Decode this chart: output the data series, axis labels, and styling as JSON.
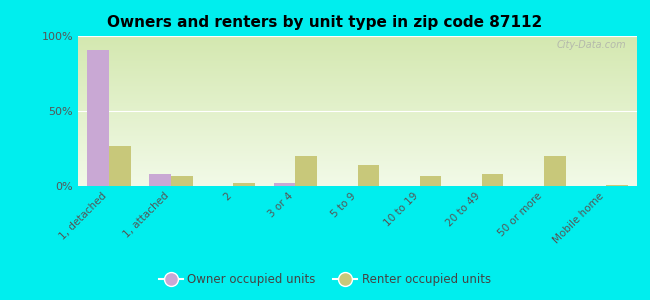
{
  "title": "Owners and renters by unit type in zip code 87112",
  "categories": [
    "1, detached",
    "1, attached",
    "2",
    "3 or 4",
    "5 to 9",
    "10 to 19",
    "20 to 49",
    "50 or more",
    "Mobile home"
  ],
  "owner_values": [
    91,
    8,
    0,
    2,
    0,
    0,
    0,
    0,
    0
  ],
  "renter_values": [
    27,
    7,
    2,
    20,
    14,
    7,
    8,
    20,
    1
  ],
  "owner_color": "#c9a8d4",
  "renter_color": "#c8c87a",
  "grad_top": "#d4e8b0",
  "grad_bottom": "#f2fae8",
  "outer_bg": "#00eeee",
  "ylim": [
    0,
    100
  ],
  "yticks": [
    0,
    50,
    100
  ],
  "ytick_labels": [
    "0%",
    "50%",
    "100%"
  ],
  "bar_width": 0.35,
  "legend_owner": "Owner occupied units",
  "legend_renter": "Renter occupied units",
  "watermark": "City-Data.com"
}
